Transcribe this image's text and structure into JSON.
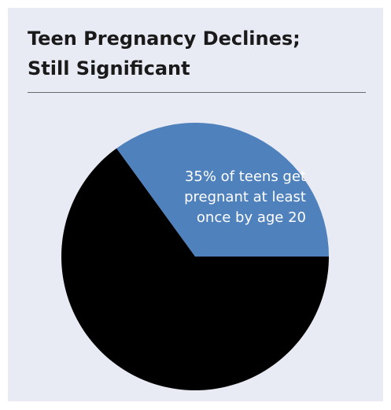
{
  "title_lines": [
    "Teen Pregnancy Declines;",
    "Still Significant"
  ],
  "chart_data": {
    "type": "pie",
    "title": "Teen Pregnancy Declines; Still Significant",
    "slices": [
      {
        "value": 35,
        "label_lines": [
          "35% of teens get",
          "pregnant at least",
          "once by age 20"
        ],
        "color": "#4f81bd"
      },
      {
        "value": 65,
        "label_lines": [],
        "color": "#000000"
      }
    ],
    "start_angle_deg": 0,
    "direction": "counterclockwise"
  },
  "colors": {
    "panel_background": "#e8ebf4",
    "title_text": "#1a1a1a",
    "rule": "#6b6b6b"
  }
}
